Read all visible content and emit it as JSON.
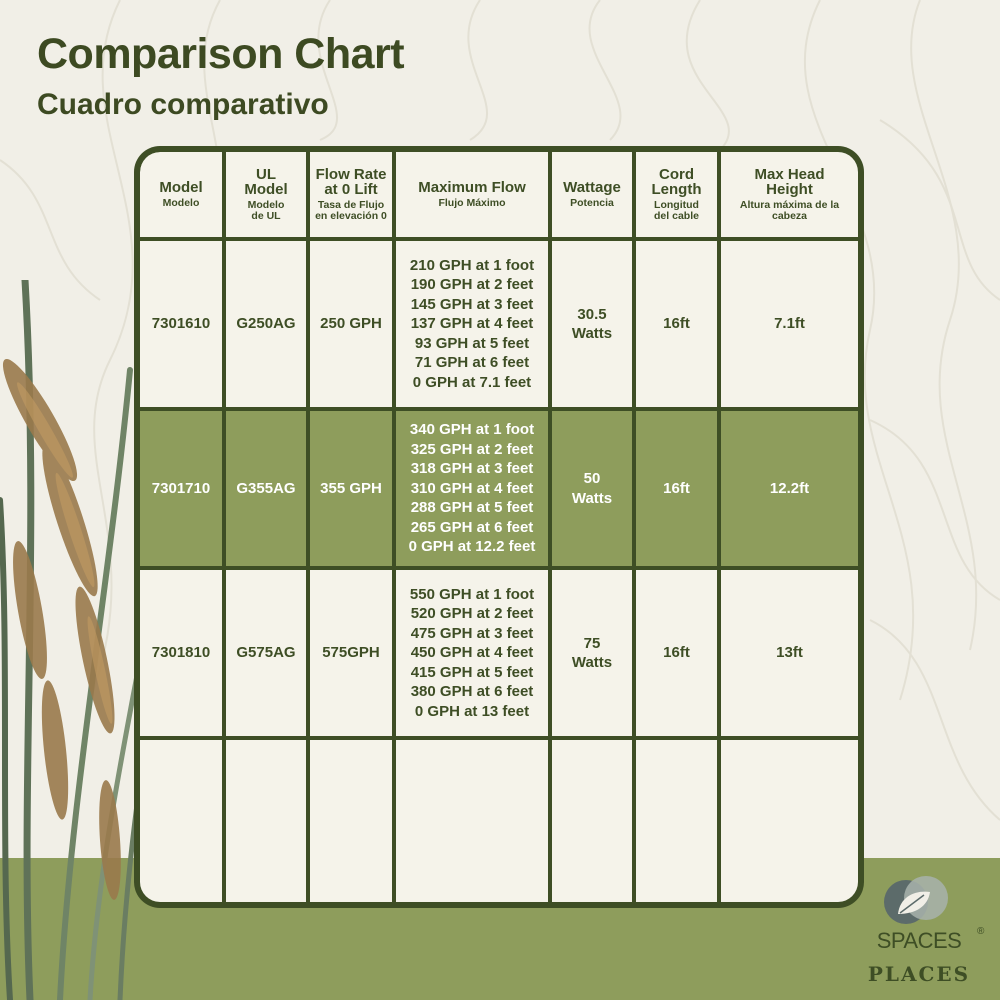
{
  "title": "Comparison Chart",
  "subtitle": "Cuadro comparativo",
  "colors": {
    "dark_green": "#3e4e25",
    "olive": "#8e9d5c",
    "cream": "#f5f3ea",
    "background": "#f1efe7"
  },
  "headers": [
    {
      "main": "Model",
      "sub": "Modelo"
    },
    {
      "main": "UL Model",
      "sub": "Modelo de UL"
    },
    {
      "main": "Flow Rate at 0 Lift",
      "sub": "Tasa de Flujo en elevación 0"
    },
    {
      "main": "Maximum Flow",
      "sub": "Flujo Máximo"
    },
    {
      "main": "Wattage",
      "sub": "Potencia"
    },
    {
      "main": "Cord Length",
      "sub": "Longitud del cable"
    },
    {
      "main": "Max Head Height",
      "sub": "Altura máxima de la cabeza"
    }
  ],
  "rows": [
    {
      "model": "7301610",
      "ul_model": "G250AG",
      "flow_rate": "250 GPH",
      "max_flow": [
        "210 GPH at 1 foot",
        "190 GPH at 2 feet",
        "145 GPH at 3 feet",
        "137 GPH at 4 feet",
        "93 GPH at 5 feet",
        "71 GPH at 6 feet",
        "0 GPH at 7.1 feet"
      ],
      "wattage": "30.5 Watts",
      "cord_length": "16ft",
      "max_head": "7.1ft"
    },
    {
      "model": "7301710",
      "ul_model": "G355AG",
      "flow_rate": "355 GPH",
      "max_flow": [
        "340 GPH at 1 foot",
        "325 GPH at 2 feet",
        "318 GPH at 3 feet",
        "310 GPH at 4 feet",
        "288 GPH at 5 feet",
        "265 GPH at 6 feet",
        "0 GPH at 12.2 feet"
      ],
      "wattage": "50 Watts",
      "cord_length": "16ft",
      "max_head": "12.2ft"
    },
    {
      "model": "7301810",
      "ul_model": "G575AG",
      "flow_rate": "575GPH",
      "max_flow": [
        "550 GPH at 1 foot",
        "520 GPH at 2 feet",
        "475 GPH at 3 feet",
        "450 GPH at 4 feet",
        "415 GPH at 5 feet",
        "380 GPH at 6 feet",
        "0 GPH at 13 feet"
      ],
      "wattage": "75 Watts",
      "cord_length": "16ft",
      "max_head": "13ft"
    }
  ],
  "logo": {
    "word1": "SPACES",
    "reg": "®",
    "word2": "PLACES",
    "icon": "leaf-icon"
  }
}
